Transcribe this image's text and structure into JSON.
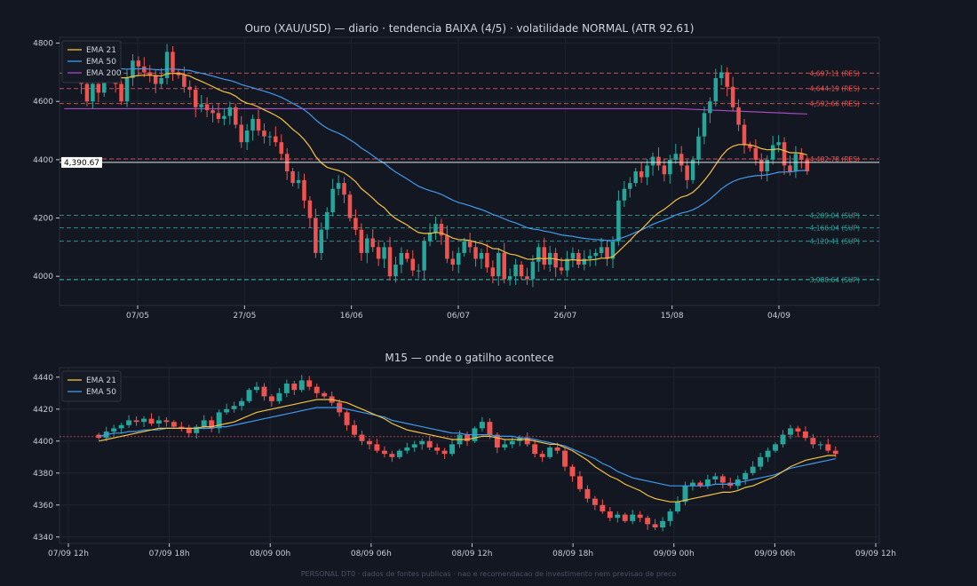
{
  "colors": {
    "background": "#131722",
    "panel_border": "#2a2e39",
    "grid": "#1e2330",
    "up": "#26a69a",
    "down": "#ef5350",
    "ema21": "#f5c242",
    "ema50": "#3f9bef",
    "ema200": "#a64bc0",
    "resistance": "#ef5350",
    "support": "#26a69a",
    "price_line": "#e6e6e6",
    "label_text": "#c9ccd4"
  },
  "footer": "PERSONAL DT0 · dados de fontes publicas · nao e recomendacao de investimento nem previsao de preco",
  "chart_data": [
    {
      "type": "candlestick",
      "title": "Ouro (XAU/USD) — diario · tendencia BAIXA (4/5) · volatilidade NORMAL (ATR 92.61)",
      "ylim": [
        3900,
        4820
      ],
      "yticks": [
        4000,
        4200,
        4400,
        4600,
        4800
      ],
      "xticks": [
        "07/05",
        "27/05",
        "16/06",
        "06/07",
        "26/07",
        "15/08",
        "04/09"
      ],
      "legend": [
        "EMA 21",
        "EMA 50",
        "EMA 200"
      ],
      "legend_position": "top-left",
      "current_price_label": "4,390.67",
      "current_price": 4390.67,
      "levels": [
        {
          "value": 4697.11,
          "label": "4,697.11 (RES)",
          "kind": "res"
        },
        {
          "value": 4644.19,
          "label": "4,644.19 (RES)",
          "kind": "res"
        },
        {
          "value": 4592.66,
          "label": "4,592.66 (RES)",
          "kind": "res"
        },
        {
          "value": 4402.78,
          "label": "4,402.78 (RES)",
          "kind": "res"
        },
        {
          "value": 4209.04,
          "label": "4,209.04 (SUP)",
          "kind": "sup"
        },
        {
          "value": 4166.04,
          "label": "4,166.04 (SUP)",
          "kind": "sup"
        },
        {
          "value": 4120.41,
          "label": "4,120.41 (SUP)",
          "kind": "sup"
        },
        {
          "value": 3988.64,
          "label": "3,988.64 (SUP)",
          "kind": "sup"
        }
      ],
      "ohlc_close": [
        4720,
        4710,
        4690,
        4660,
        4600,
        4660,
        4630,
        4700,
        4720,
        4660,
        4600,
        4680,
        4740,
        4720,
        4700,
        4690,
        4660,
        4680,
        4770,
        4700,
        4690,
        4650,
        4640,
        4580,
        4590,
        4570,
        4560,
        4540,
        4550,
        4580,
        4520,
        4460,
        4500,
        4540,
        4500,
        4480,
        4480,
        4460,
        4420,
        4360,
        4320,
        4330,
        4260,
        4200,
        4080,
        4160,
        4220,
        4300,
        4320,
        4280,
        4200,
        4160,
        4080,
        4130,
        4100,
        4060,
        4100,
        4000,
        4040,
        4080,
        4060,
        4020,
        4020,
        4120,
        4150,
        4180,
        4140,
        4060,
        4040,
        4080,
        4120,
        4100,
        4060,
        4080,
        4030,
        4000,
        4080,
        3990,
        4000,
        4040,
        4000,
        3990,
        4050,
        4100,
        4040,
        4080,
        4030,
        4020,
        4060,
        4080,
        4040,
        4060,
        4070,
        4080,
        4100,
        4060,
        4120,
        4260,
        4300,
        4320,
        4360,
        4340,
        4380,
        4410,
        4380,
        4350,
        4400,
        4420,
        4380,
        4330,
        4400,
        4480,
        4560,
        4600,
        4680,
        4700,
        4650,
        4580,
        4520,
        4450,
        4440,
        4400,
        4360,
        4400,
        4450,
        4460,
        4380,
        4360,
        4420,
        4400,
        4360
      ],
      "ema21": [
        4720,
        4718,
        4712,
        4705,
        4695,
        4694,
        4688,
        4690,
        4693,
        4690,
        4681,
        4681,
        4686,
        4689,
        4690,
        4690,
        4688,
        4687,
        4695,
        4696,
        4696,
        4692,
        4687,
        4677,
        4669,
        4660,
        4651,
        4641,
        4633,
        4628,
        4618,
        4603,
        4594,
        4589,
        4581,
        4571,
        4562,
        4552,
        4540,
        4523,
        4504,
        4489,
        4469,
        4444,
        4411,
        4389,
        4374,
        4368,
        4363,
        4355,
        4341,
        4325,
        4301,
        4285,
        4268,
        4249,
        4235,
        4214,
        4198,
        4187,
        4176,
        4162,
        4150,
        4147,
        4147,
        4150,
        4149,
        4141,
        4131,
        4126,
        4125,
        4123,
        4117,
        4113,
        4105,
        4095,
        4094,
        4084,
        4076,
        4073,
        4066,
        4059,
        4058,
        4062,
        4060,
        4062,
        4059,
        4055,
        4055,
        4057,
        4055,
        4055,
        4056,
        4058,
        4062,
        4062,
        4067,
        4085,
        4104,
        4123,
        4144,
        4161,
        4181,
        4202,
        4218,
        4230,
        4245,
        4261,
        4272,
        4277,
        4288,
        4306,
        4329,
        4354,
        4383,
        4412,
        4434,
        4446,
        4452,
        4452,
        4451,
        4446,
        4438,
        4434,
        4435,
        4437,
        4431,
        4424,
        4424,
        4422,
        4416
      ],
      "ema50": [
        4740,
        4738,
        4735,
        4731,
        4726,
        4723,
        4719,
        4718,
        4718,
        4716,
        4712,
        4711,
        4711,
        4712,
        4712,
        4711,
        4709,
        4708,
        4711,
        4711,
        4710,
        4708,
        4706,
        4701,
        4697,
        4692,
        4687,
        4681,
        4676,
        4672,
        4666,
        4658,
        4652,
        4647,
        4641,
        4635,
        4629,
        4622,
        4614,
        4604,
        4593,
        4583,
        4571,
        4556,
        4537,
        4521,
        4508,
        4499,
        4491,
        4481,
        4468,
        4456,
        4440,
        4428,
        4414,
        4400,
        4388,
        4372,
        4358,
        4346,
        4334,
        4321,
        4309,
        4301,
        4294,
        4288,
        4281,
        4271,
        4261,
        4253,
        4248,
        4242,
        4235,
        4229,
        4221,
        4212,
        4206,
        4197,
        4189,
        4183,
        4175,
        4167,
        4162,
        4160,
        4155,
        4152,
        4147,
        4142,
        4139,
        4137,
        4133,
        4130,
        4128,
        4126,
        4125,
        4123,
        4123,
        4128,
        4135,
        4142,
        4151,
        4159,
        4168,
        4178,
        4186,
        4193,
        4201,
        4210,
        4217,
        4221,
        4228,
        4238,
        4251,
        4265,
        4282,
        4300,
        4314,
        4325,
        4333,
        4338,
        4342,
        4345,
        4346,
        4348,
        4352,
        4357,
        4358,
        4358,
        4361,
        4363,
        4363
      ],
      "ema200_value": 4575
    },
    {
      "type": "candlestick",
      "title": "M15 — onde o gatilho acontece",
      "ylim": [
        4336,
        4446
      ],
      "yticks": [
        4340,
        4360,
        4380,
        4400,
        4420,
        4440
      ],
      "xticks": [
        "07/09 12h",
        "07/09 18h",
        "08/09 00h",
        "08/09 06h",
        "08/09 12h",
        "08/09 18h",
        "09/09 00h",
        "09/09 06h",
        "09/09 12h"
      ],
      "legend": [
        "EMA 21",
        "EMA 50"
      ],
      "legend_position": "top-left",
      "reference_level": 4402.78,
      "ohlc_close": [
        4402,
        4406,
        4408,
        4410,
        4413,
        4412,
        4414,
        4411,
        4413,
        4412,
        4409,
        4408,
        4405,
        4409,
        4413,
        4408,
        4418,
        4420,
        4422,
        4425,
        4432,
        4434,
        4428,
        4425,
        4430,
        4436,
        4432,
        4438,
        4434,
        4430,
        4428,
        4424,
        4418,
        4410,
        4404,
        4400,
        4398,
        4394,
        4392,
        4390,
        4394,
        4396,
        4398,
        4400,
        4396,
        4394,
        4392,
        4398,
        4404,
        4400,
        4408,
        4412,
        4404,
        4396,
        4398,
        4400,
        4402,
        4398,
        4392,
        4390,
        4396,
        4394,
        4384,
        4378,
        4370,
        4364,
        4360,
        4356,
        4352,
        4354,
        4350,
        4354,
        4352,
        4348,
        4346,
        4350,
        4356,
        4362,
        4372,
        4374,
        4372,
        4376,
        4378,
        4374,
        4372,
        4376,
        4380,
        4384,
        4390,
        4394,
        4398,
        4404,
        4408,
        4406,
        4402,
        4398,
        4398,
        4394,
        4392
      ],
      "ema21": [
        4400,
        4401,
        4402,
        4403,
        4404,
        4405,
        4406,
        4407,
        4408,
        4408,
        4408,
        4408,
        4408,
        4408,
        4409,
        4409,
        4410,
        4411,
        4412,
        4414,
        4416,
        4418,
        4419,
        4420,
        4421,
        4422,
        4423,
        4424,
        4425,
        4426,
        4426,
        4426,
        4425,
        4424,
        4422,
        4420,
        4418,
        4416,
        4414,
        4411,
        4409,
        4407,
        4406,
        4405,
        4404,
        4403,
        4402,
        4401,
        4401,
        4401,
        4402,
        4403,
        4403,
        4402,
        4401,
        4401,
        4401,
        4401,
        4400,
        4399,
        4398,
        4398,
        4396,
        4394,
        4391,
        4388,
        4384,
        4381,
        4378,
        4376,
        4373,
        4371,
        4369,
        4366,
        4364,
        4363,
        4362,
        4362,
        4363,
        4364,
        4365,
        4366,
        4367,
        4368,
        4368,
        4369,
        4371,
        4372,
        4374,
        4376,
        4378,
        4381,
        4384,
        4386,
        4388,
        4389,
        4390,
        4391,
        4391
      ],
      "ema50": [
        4403,
        4404,
        4405,
        4405,
        4406,
        4406,
        4407,
        4407,
        4407,
        4408,
        4408,
        4408,
        4408,
        4408,
        4408,
        4408,
        4409,
        4409,
        4410,
        4411,
        4412,
        4413,
        4414,
        4415,
        4416,
        4417,
        4418,
        4419,
        4420,
        4421,
        4421,
        4421,
        4421,
        4420,
        4419,
        4418,
        4417,
        4416,
        4415,
        4413,
        4412,
        4411,
        4410,
        4409,
        4408,
        4407,
        4406,
        4405,
        4405,
        4404,
        4404,
        4404,
        4404,
        4403,
        4403,
        4403,
        4402,
        4402,
        4401,
        4400,
        4399,
        4398,
        4397,
        4395,
        4393,
        4391,
        4389,
        4386,
        4384,
        4381,
        4379,
        4377,
        4376,
        4375,
        4374,
        4373,
        4372,
        4372,
        4372,
        4372,
        4372,
        4372,
        4373,
        4373,
        4373,
        4374,
        4375,
        4376,
        4377,
        4378,
        4379,
        4381,
        4383,
        4384,
        4385,
        4386,
        4387,
        4388,
        4389
      ]
    }
  ]
}
